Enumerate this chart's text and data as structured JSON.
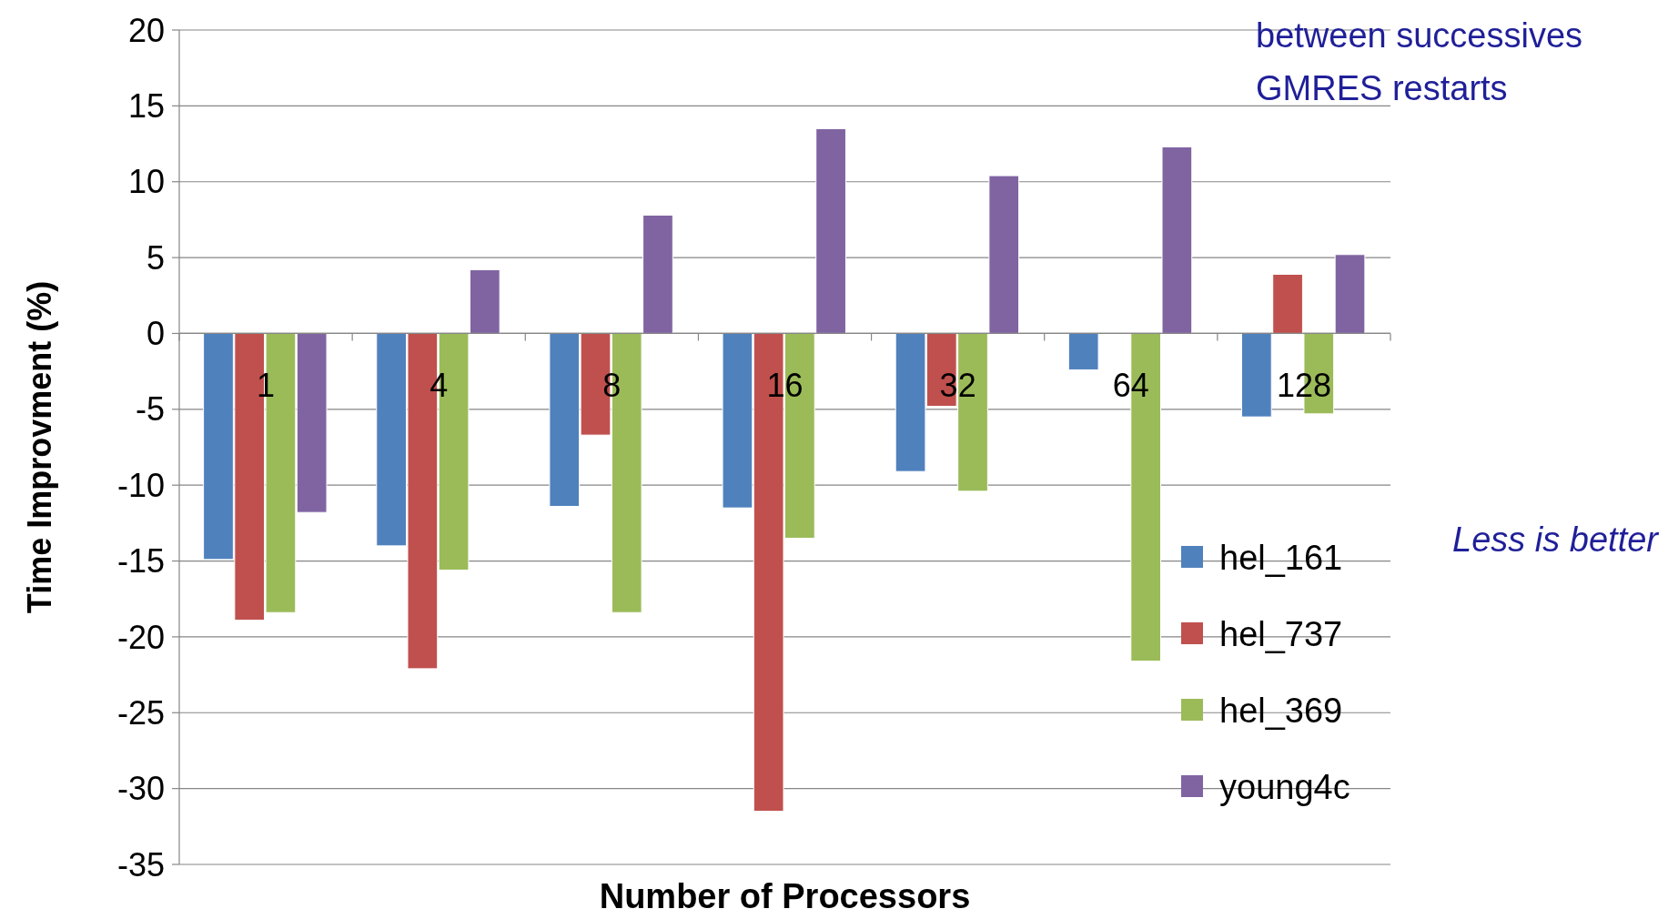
{
  "chart_data": {
    "type": "bar",
    "xlabel": "Number of Processors",
    "ylabel": "Time Improvment (%)",
    "categories": [
      "1",
      "4",
      "8",
      "16",
      "32",
      "64",
      "128"
    ],
    "series": [
      {
        "name": "hel_161",
        "color": "#4f81bd",
        "values": [
          -14.9,
          -14,
          -11.4,
          -11.5,
          -9.1,
          -2.4,
          -5.5
        ]
      },
      {
        "name": "hel_737",
        "color": "#c0504d",
        "values": [
          -18.9,
          -22.1,
          -6.7,
          -31.5,
          -4.8,
          0,
          3.9
        ]
      },
      {
        "name": "hel_369",
        "color": "#9bbb59",
        "values": [
          -18.4,
          -15.6,
          -18.4,
          -13.5,
          -10.4,
          -21.6,
          -5.3
        ]
      },
      {
        "name": "young4c",
        "color": "#8064a2",
        "values": [
          -11.8,
          4.2,
          7.8,
          13.5,
          10.4,
          12.3,
          5.2
        ]
      }
    ],
    "ylim": [
      -35,
      20
    ],
    "yticks": [
      -35,
      -30,
      -25,
      -20,
      -15,
      -10,
      -5,
      0,
      5,
      10,
      15,
      20
    ],
    "grid": "y",
    "legend": "right",
    "annotations": [
      "between successives GMRES restarts",
      "Less is better"
    ]
  }
}
